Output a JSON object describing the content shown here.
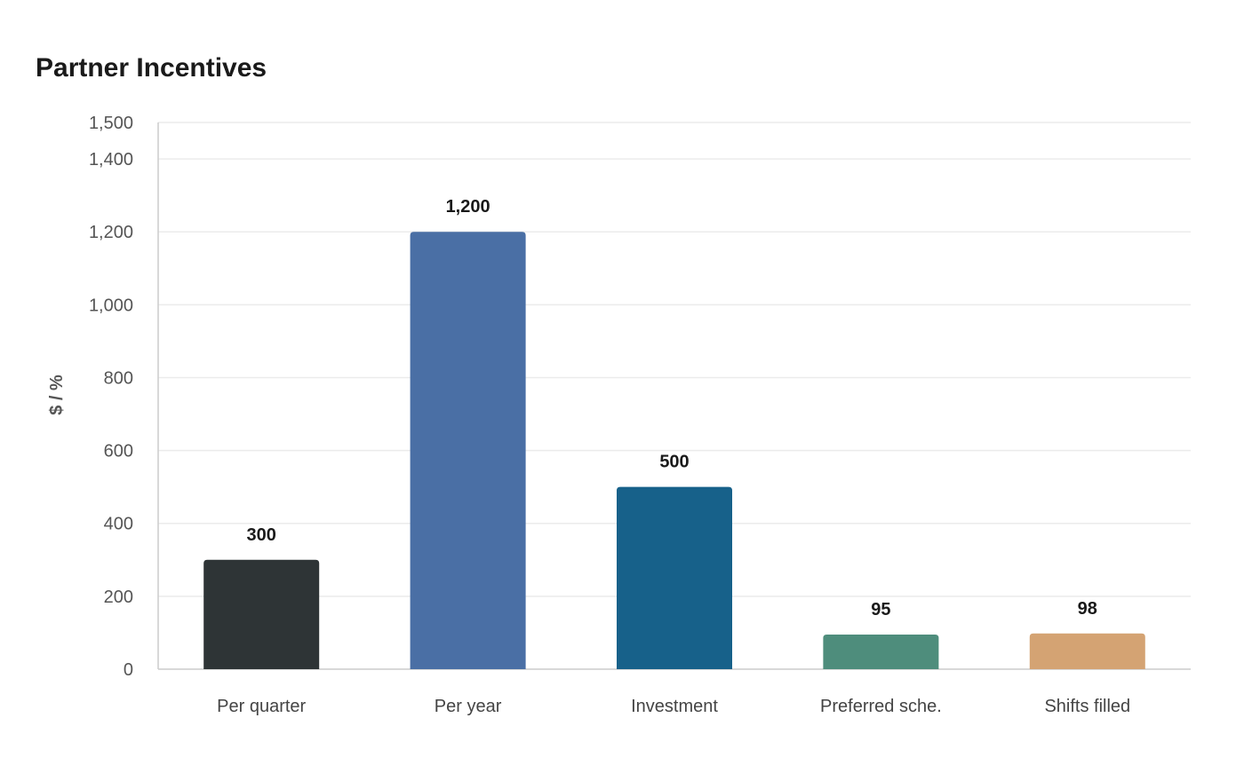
{
  "chart_data": {
    "type": "bar",
    "title": "Partner Incentives",
    "xlabel": "",
    "ylabel": "$ / %",
    "ylim": [
      0,
      1500
    ],
    "yticks": [
      0,
      200,
      400,
      600,
      800,
      1000,
      1200,
      1400,
      1500
    ],
    "ytick_labels": [
      "0",
      "200",
      "400",
      "600",
      "800",
      "1,000",
      "1,200",
      "1,400",
      "1,500"
    ],
    "categories": [
      "Per quarter",
      "Per year",
      "Investment",
      "Preferred sche.",
      "Shifts filled"
    ],
    "values": [
      300,
      1200,
      500,
      95,
      98
    ],
    "value_labels": [
      "300",
      "1,200",
      "500",
      "95",
      "98"
    ],
    "colors": [
      "#2e3436",
      "#4a6fa5",
      "#17618a",
      "#4e8d7c",
      "#d4a373"
    ],
    "grid": true,
    "legend": "none"
  }
}
